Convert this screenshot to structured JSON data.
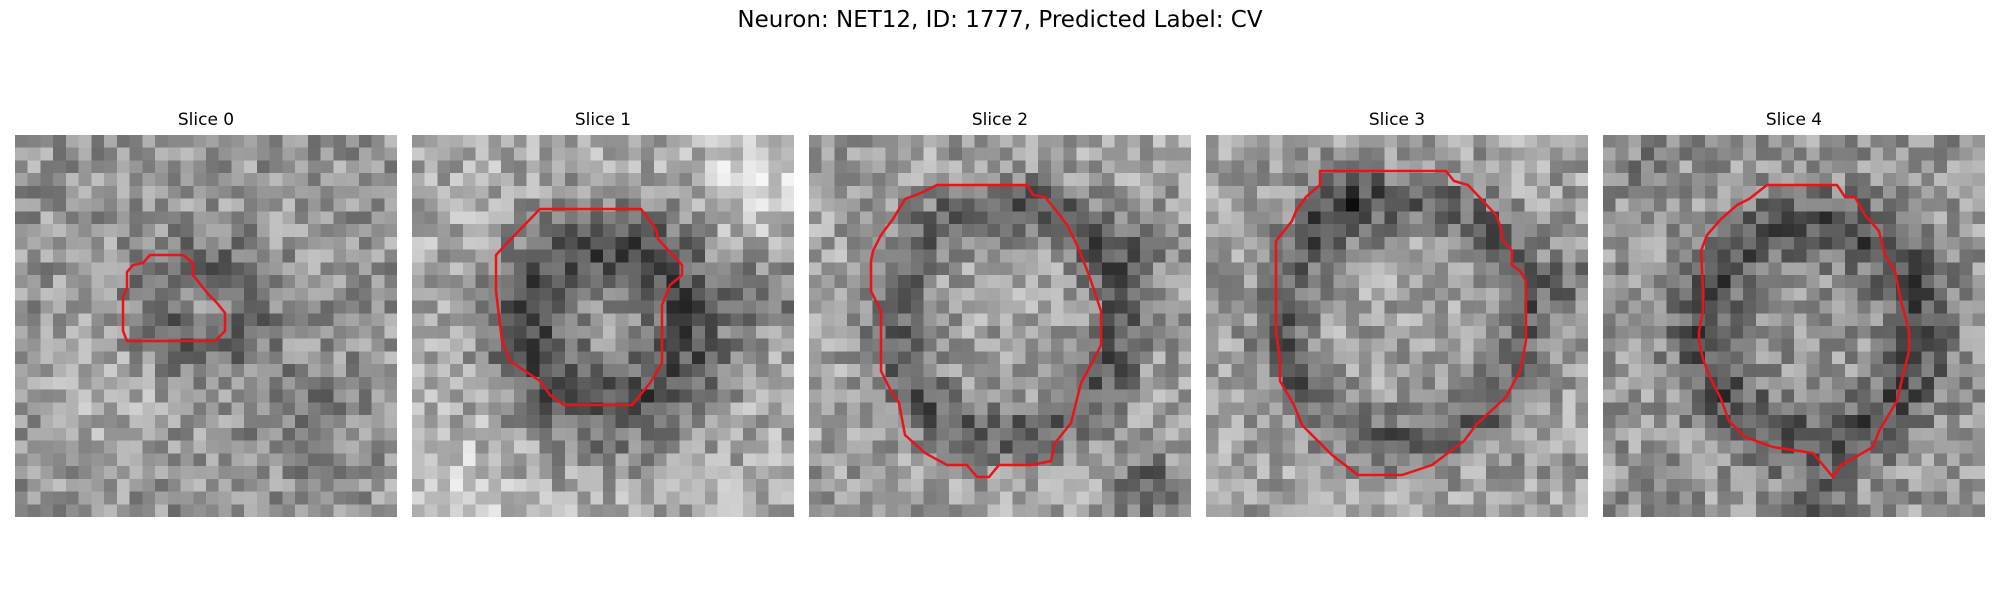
{
  "figure": {
    "suptitle": "Neuron: NET12, ID: 1777, Predicted Label: CV",
    "contour_color": "#e8141a",
    "colormap": "gray"
  },
  "slices": [
    {
      "title": "Slice 0"
    },
    {
      "title": "Slice 1"
    },
    {
      "title": "Slice 2"
    },
    {
      "title": "Slice 3"
    },
    {
      "title": "Slice 4"
    }
  ]
}
